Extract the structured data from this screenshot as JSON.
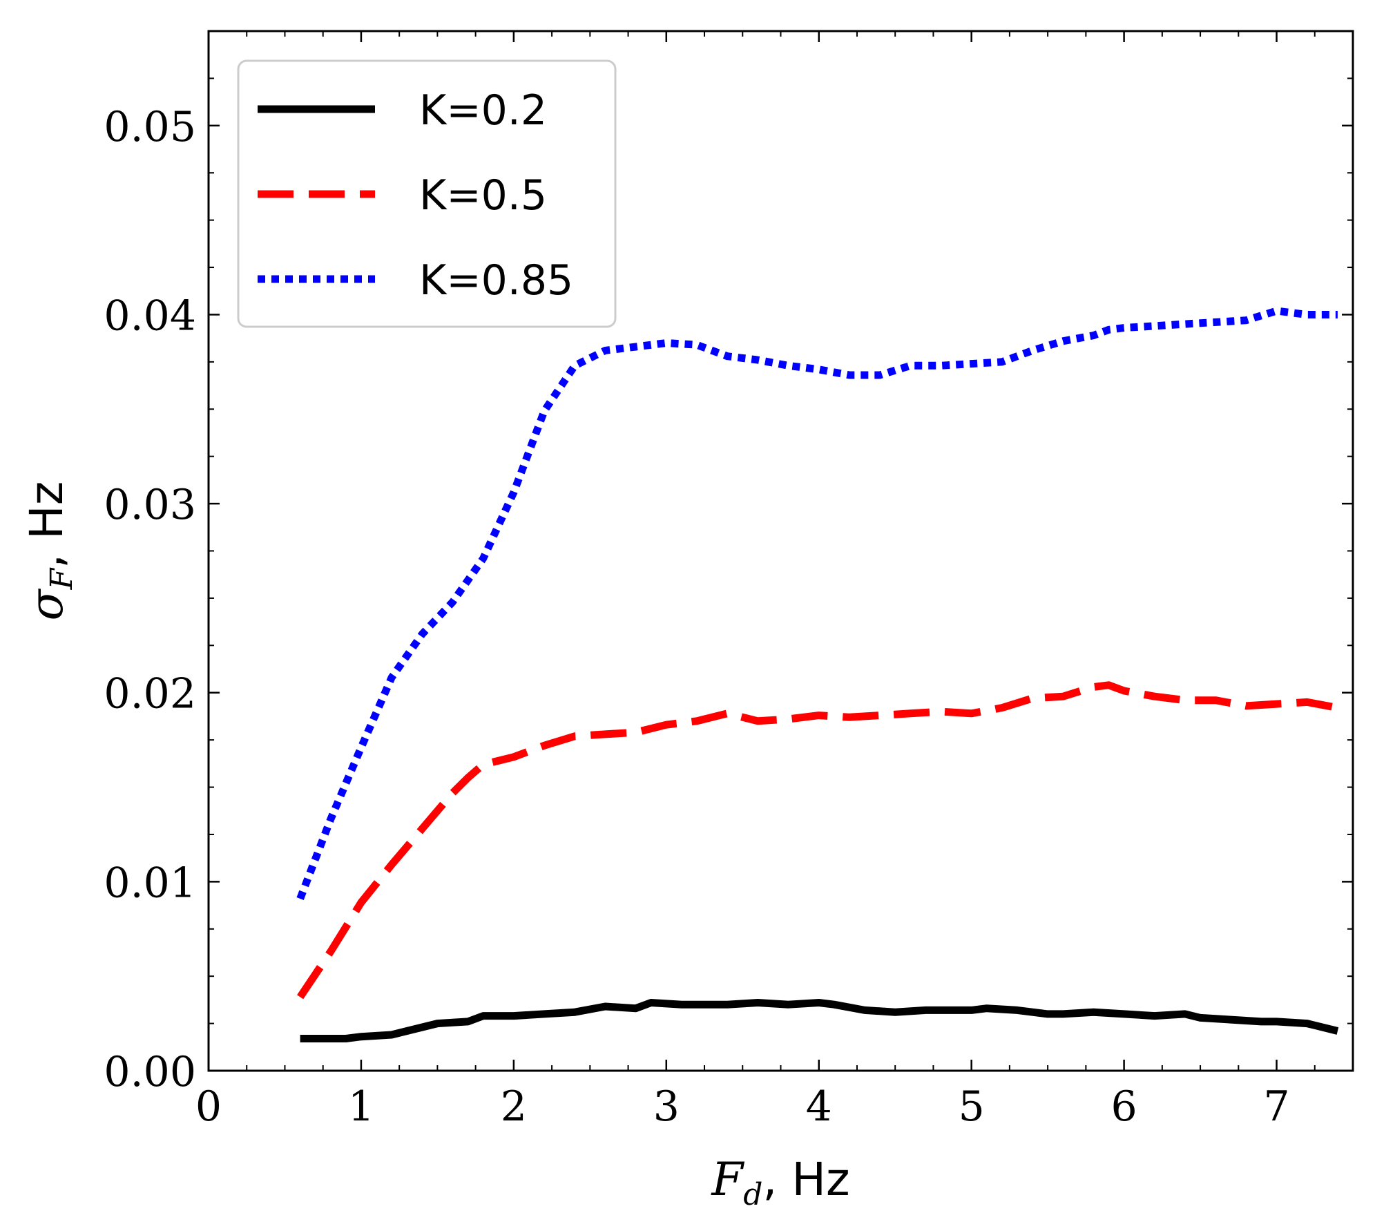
{
  "chart_data": {
    "type": "line",
    "title": "",
    "xlabel": {
      "symbol": "F",
      "subscript": "d",
      "unit": ", Hz"
    },
    "ylabel": {
      "symbol": "σ",
      "subscript": "F",
      "unit": ", Hz"
    },
    "xlim": [
      0,
      7.5
    ],
    "ylim": [
      0,
      0.055
    ],
    "xticks": [
      0,
      1,
      2,
      3,
      4,
      5,
      6,
      7
    ],
    "xtick_labels": [
      "0",
      "1",
      "2",
      "3",
      "4",
      "5",
      "6",
      "7"
    ],
    "yticks": [
      0,
      0.01,
      0.02,
      0.03,
      0.04,
      0.05
    ],
    "ytick_labels": [
      "0.00",
      "0.01",
      "0.02",
      "0.03",
      "0.04",
      "0.05"
    ],
    "grid": false,
    "legend_position": "top-left",
    "series": [
      {
        "name": "K=0.2",
        "color": "#000000",
        "style": "solid",
        "x": [
          0.6,
          0.7,
          0.8,
          0.9,
          1.0,
          1.2,
          1.3,
          1.5,
          1.7,
          1.8,
          2.0,
          2.2,
          2.4,
          2.6,
          2.8,
          2.9,
          3.1,
          3.2,
          3.4,
          3.6,
          3.8,
          4.0,
          4.1,
          4.3,
          4.5,
          4.7,
          4.8,
          5.0,
          5.1,
          5.3,
          5.5,
          5.6,
          5.8,
          6.0,
          6.2,
          6.4,
          6.5,
          6.7,
          6.9,
          7.0,
          7.2,
          7.4
        ],
        "y": [
          0.0017,
          0.0017,
          0.0017,
          0.0017,
          0.0018,
          0.0019,
          0.0021,
          0.0025,
          0.0026,
          0.0029,
          0.0029,
          0.003,
          0.0031,
          0.0034,
          0.0033,
          0.0036,
          0.0035,
          0.0035,
          0.0035,
          0.0036,
          0.0035,
          0.0036,
          0.0035,
          0.0032,
          0.0031,
          0.0032,
          0.0032,
          0.0032,
          0.0033,
          0.0032,
          0.003,
          0.003,
          0.0031,
          0.003,
          0.0029,
          0.003,
          0.0028,
          0.0027,
          0.0026,
          0.0026,
          0.0025,
          0.0021
        ]
      },
      {
        "name": "K=0.5",
        "color": "#ff0000",
        "style": "dashed",
        "x": [
          0.6,
          0.8,
          1.0,
          1.2,
          1.4,
          1.6,
          1.7,
          1.8,
          2.0,
          2.2,
          2.4,
          2.6,
          2.8,
          3.0,
          3.2,
          3.4,
          3.6,
          3.8,
          4.0,
          4.2,
          4.4,
          4.6,
          4.8,
          5.0,
          5.2,
          5.4,
          5.6,
          5.8,
          5.9,
          6.0,
          6.2,
          6.4,
          6.6,
          6.8,
          7.0,
          7.2,
          7.4
        ],
        "y": [
          0.0039,
          0.0063,
          0.0089,
          0.0109,
          0.0128,
          0.0147,
          0.0155,
          0.0162,
          0.0166,
          0.0172,
          0.0177,
          0.0178,
          0.0179,
          0.0183,
          0.0185,
          0.0189,
          0.0185,
          0.0186,
          0.0188,
          0.0187,
          0.0188,
          0.0189,
          0.019,
          0.0189,
          0.0192,
          0.0197,
          0.0198,
          0.0203,
          0.0204,
          0.0201,
          0.0198,
          0.0196,
          0.0196,
          0.0193,
          0.0194,
          0.0195,
          0.0192
        ]
      },
      {
        "name": "K=0.85",
        "color": "#0000ff",
        "style": "dotted",
        "x": [
          0.6,
          0.8,
          1.0,
          1.2,
          1.4,
          1.6,
          1.8,
          2.0,
          2.2,
          2.4,
          2.6,
          2.8,
          3.0,
          3.2,
          3.4,
          3.6,
          3.8,
          4.0,
          4.2,
          4.4,
          4.6,
          4.8,
          5.0,
          5.2,
          5.4,
          5.6,
          5.8,
          5.9,
          6.0,
          6.2,
          6.4,
          6.6,
          6.8,
          7.0,
          7.2,
          7.4
        ],
        "y": [
          0.0091,
          0.0133,
          0.0171,
          0.0208,
          0.0231,
          0.0248,
          0.0271,
          0.0306,
          0.0349,
          0.0373,
          0.0381,
          0.0383,
          0.0385,
          0.0384,
          0.0378,
          0.0376,
          0.0373,
          0.0371,
          0.0368,
          0.0368,
          0.0373,
          0.0373,
          0.0374,
          0.0375,
          0.0381,
          0.0386,
          0.0389,
          0.0392,
          0.0393,
          0.0394,
          0.0395,
          0.0396,
          0.0397,
          0.0402,
          0.04,
          0.04
        ]
      }
    ]
  }
}
